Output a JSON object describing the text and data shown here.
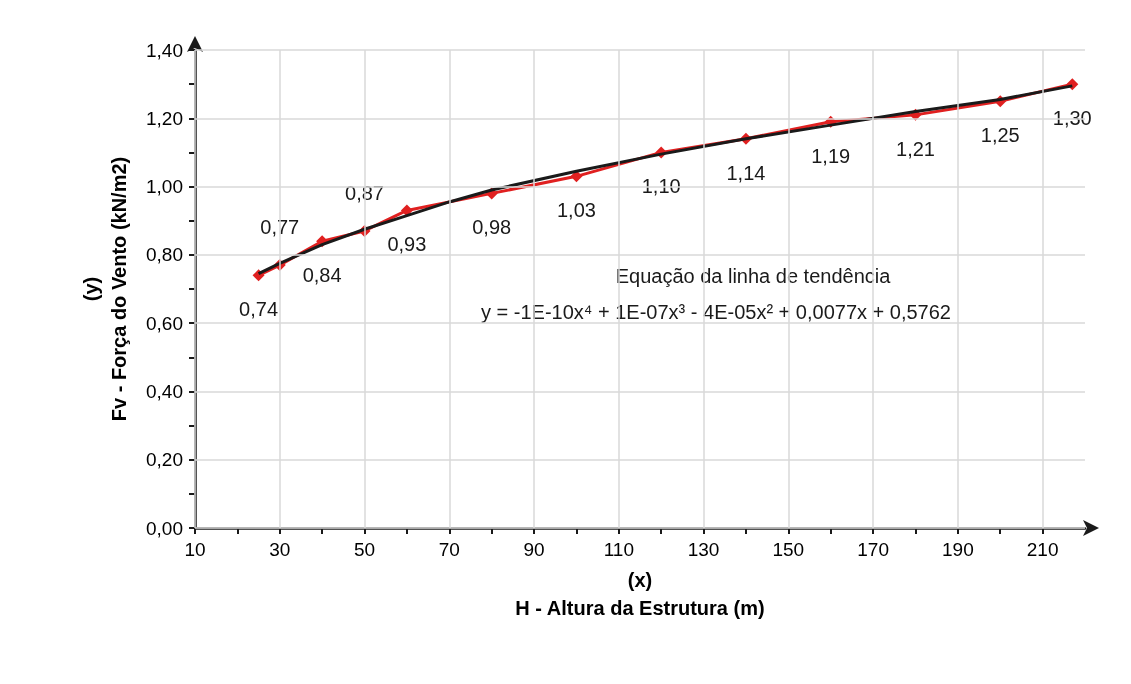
{
  "chart_data": {
    "type": "line",
    "xlabel": "(x)\nH - Altura da Estrutura (m)",
    "ylabel": "(y)\nFv - Força do Vento (kN/m2)",
    "annotations": [
      "Equação da linha de tendência",
      "y = -1E-10x⁴ + 1E-07x³ - 4E-05x² + 0,0077x + 0,5762"
    ],
    "x": [
      25,
      30,
      40,
      50,
      60,
      80,
      100,
      120,
      140,
      160,
      180,
      200,
      217
    ],
    "series": [
      {
        "color": "#e02020",
        "values": [
          0.74,
          0.77,
          0.84,
          0.87,
          0.93,
          0.98,
          1.03,
          1.1,
          1.14,
          1.19,
          1.21,
          1.25,
          1.3
        ],
        "marker": "diamond",
        "value_labels": [
          "0,74",
          "0,77",
          "0,84",
          "0,87",
          "0,93",
          "0,98",
          "1,03",
          "1,10",
          "1,14",
          "1,19",
          "1,21",
          "1,25",
          "1,30"
        ]
      },
      {
        "color": "#1a1a1a",
        "marker": "none",
        "x": [
          25,
          30,
          40,
          50,
          60,
          70,
          80,
          100,
          120,
          140,
          160,
          180,
          200,
          217
        ],
        "values": [
          0.745,
          0.775,
          0.83,
          0.875,
          0.915,
          0.955,
          0.99,
          1.045,
          1.095,
          1.14,
          1.18,
          1.22,
          1.255,
          1.295
        ]
      }
    ],
    "xlim": [
      10,
      220
    ],
    "xticks": [
      10,
      {
        "value": 20,
        "label": null
      },
      30,
      {
        "value": 40,
        "label": null
      },
      50,
      {
        "value": 60,
        "label": null
      },
      70,
      {
        "value": 80,
        "label": null
      },
      90,
      {
        "value": 100,
        "label": null
      },
      110,
      {
        "value": 120,
        "label": null
      },
      130,
      {
        "value": 140,
        "label": null
      },
      150,
      {
        "value": 160,
        "label": null
      },
      170,
      {
        "value": 180,
        "label": null
      },
      190,
      {
        "value": 200,
        "label": null
      },
      210
    ],
    "ylim": [
      0,
      1.4
    ],
    "yticks": [
      {
        "value": 0,
        "label": "0,00"
      },
      {
        "value": 0.1,
        "label": null
      },
      {
        "value": 0.2,
        "label": "0,20"
      },
      {
        "value": 0.3,
        "label": null
      },
      {
        "value": 0.4,
        "label": "0,40"
      },
      {
        "value": 0.5,
        "label": null
      },
      {
        "value": 0.6,
        "label": "0,60"
      },
      {
        "value": 0.7,
        "label": null
      },
      {
        "value": 0.8,
        "label": "0,80"
      },
      {
        "value": 0.9,
        "label": null
      },
      {
        "value": 1.0,
        "label": "1,00"
      },
      {
        "value": 1.1,
        "label": null
      },
      {
        "value": 1.2,
        "label": "1,20"
      },
      {
        "value": 1.3,
        "label": null
      },
      {
        "value": 1.4,
        "label": "1,40"
      }
    ],
    "grid": true
  }
}
